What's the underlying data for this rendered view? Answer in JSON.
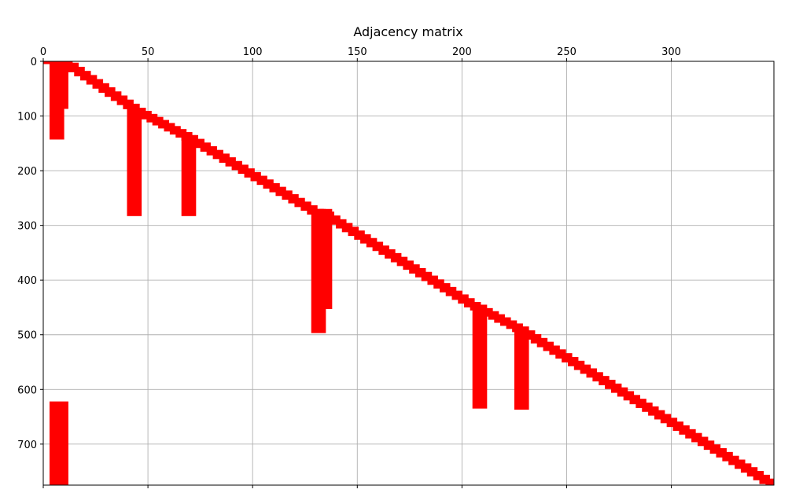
{
  "chart_data": {
    "type": "heatmap",
    "title": "Adjacency matrix",
    "xlabel": "",
    "ylabel": "",
    "xlim": [
      0,
      349
    ],
    "ylim": [
      775,
      0
    ],
    "x_axis_position": "top",
    "y_axis_inverted": true,
    "grid": true,
    "x_ticks": [
      0,
      50,
      100,
      150,
      200,
      250,
      300
    ],
    "y_ticks": [
      0,
      100,
      200,
      300,
      400,
      500,
      600,
      700
    ],
    "x_tick_labels": [
      "0",
      "50",
      "100",
      "150",
      "200",
      "250",
      "300"
    ],
    "y_tick_labels": [
      "0",
      "100",
      "200",
      "300",
      "400",
      "500",
      "600",
      "700"
    ],
    "mark_color": "#ff0000",
    "diagonal_band": {
      "points": [
        [
          0,
          0
        ],
        [
          10,
          0
        ],
        [
          45,
          90
        ],
        [
          70,
          140
        ],
        [
          130,
          275
        ],
        [
          135,
          280
        ],
        [
          205,
          445
        ],
        [
          228,
          490
        ],
        [
          349,
          775
        ]
      ],
      "band_width_x": 8,
      "band_width_y": 10
    },
    "vertical_bars": [
      {
        "x0": 3,
        "x1": 10,
        "y0": 0,
        "y1": 143
      },
      {
        "x0": 7,
        "x1": 12,
        "y0": 0,
        "y1": 87
      },
      {
        "x0": 40,
        "x1": 47,
        "y0": 85,
        "y1": 283
      },
      {
        "x0": 66,
        "x1": 73,
        "y0": 135,
        "y1": 283
      },
      {
        "x0": 128,
        "x1": 135,
        "y0": 270,
        "y1": 497
      },
      {
        "x0": 132,
        "x1": 138,
        "y0": 270,
        "y1": 453
      },
      {
        "x0": 205,
        "x1": 212,
        "y0": 445,
        "y1": 635
      },
      {
        "x0": 225,
        "x1": 232,
        "y0": 490,
        "y1": 637
      },
      {
        "x0": 3,
        "x1": 12,
        "y0": 622,
        "y1": 775
      }
    ]
  }
}
